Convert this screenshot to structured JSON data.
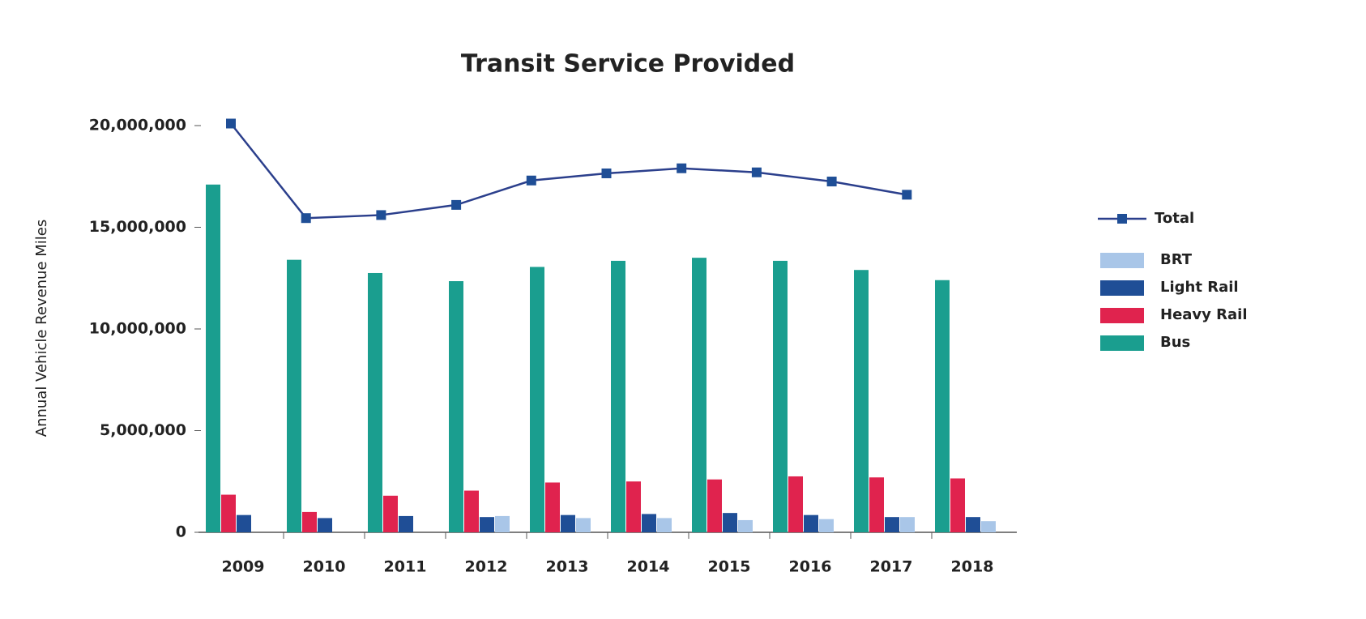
{
  "chart_data": {
    "type": "bar",
    "title": "Transit Service Provided",
    "y_label": "Annual Vehicle Revenue Miles",
    "categories": [
      "2009",
      "2010",
      "2011",
      "2012",
      "2013",
      "2014",
      "2015",
      "2016",
      "2017",
      "2018"
    ],
    "series": [
      {
        "name": "Bus",
        "color": "#1a9e8f",
        "values": [
          17100000,
          13400000,
          12750000,
          12350000,
          13050000,
          13350000,
          13500000,
          13350000,
          12900000,
          12400000
        ]
      },
      {
        "name": "Heavy Rail",
        "color": "#e0234e",
        "values": [
          1850000,
          1000000,
          1800000,
          2050000,
          2450000,
          2500000,
          2600000,
          2750000,
          2700000,
          2650000
        ]
      },
      {
        "name": "Light Rail",
        "color": "#1f4e96",
        "values": [
          850000,
          700000,
          800000,
          750000,
          850000,
          900000,
          950000,
          850000,
          750000,
          750000
        ]
      },
      {
        "name": "BRT",
        "color": "#a9c6e8",
        "values": [
          0,
          0,
          0,
          800000,
          700000,
          700000,
          600000,
          650000,
          750000,
          550000
        ]
      },
      {
        "name": "Total",
        "type": "line",
        "color": "#1f4e96",
        "values": [
          20100000,
          15450000,
          15600000,
          16100000,
          17300000,
          17650000,
          17900000,
          17700000,
          17250000,
          16600000
        ]
      }
    ],
    "ylim": [
      0,
      20000000
    ],
    "yticks": [
      {
        "value": 0,
        "label": "0"
      },
      {
        "value": 5000000,
        "label": "5,000,000"
      },
      {
        "value": 10000000,
        "label": "10,000,000"
      },
      {
        "value": 15000000,
        "label": "15,000,000"
      },
      {
        "value": 20000000,
        "label": "20,000,000"
      }
    ],
    "grid": false,
    "legend": "right"
  }
}
